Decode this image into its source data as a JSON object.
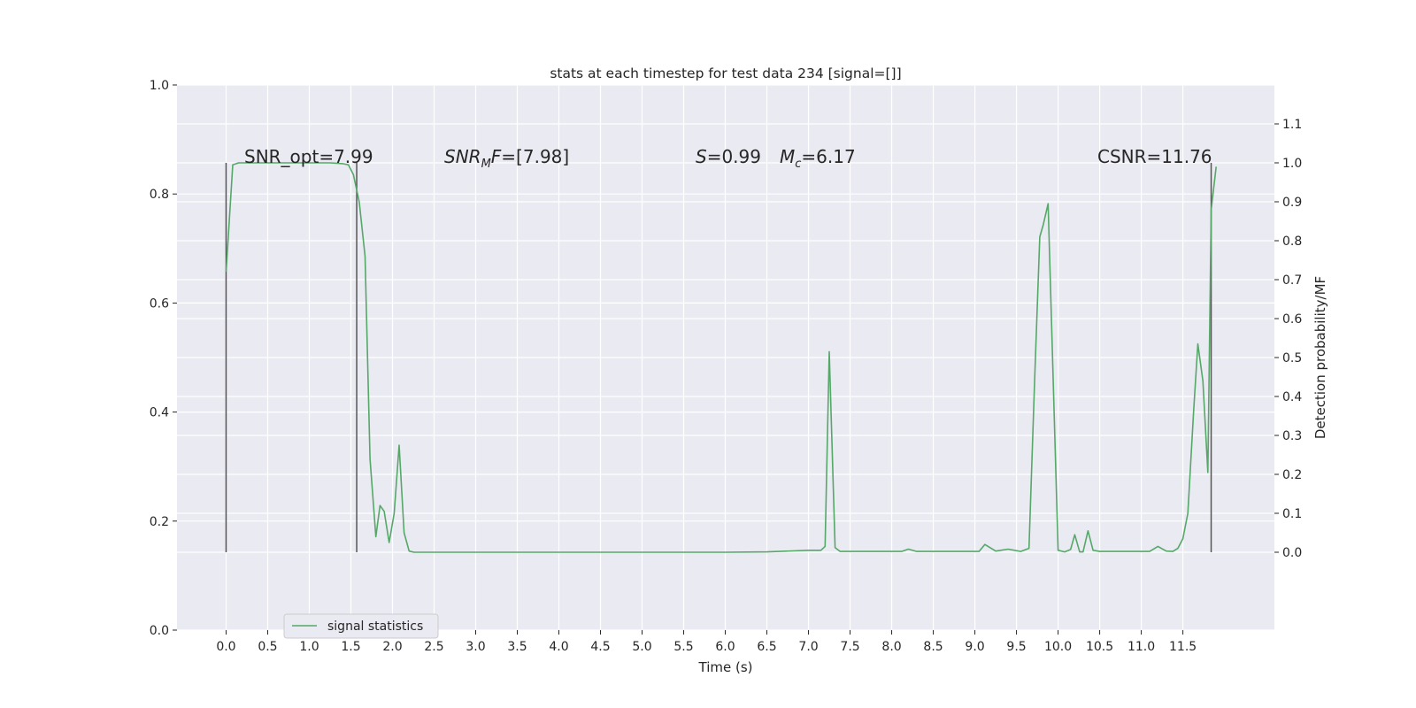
{
  "chart_data": {
    "type": "line",
    "title": "stats at each timestep for test data 234 [signal=[]]",
    "xlabel": "Time (s)",
    "ylabel_left": "",
    "ylabel_right": "Detection probability/MF",
    "xlim": [
      -0.59,
      12.6
    ],
    "ylim_left": [
      0.0,
      1.0
    ],
    "ylim_right": [
      -0.2,
      1.2
    ],
    "x_ticks": [
      "0.0",
      "0.5",
      "1.0",
      "1.5",
      "2.0",
      "2.5",
      "3.0",
      "3.5",
      "4.0",
      "4.5",
      "5.0",
      "5.5",
      "6.0",
      "6.5",
      "7.0",
      "7.5",
      "8.0",
      "8.5",
      "9.0",
      "9.5",
      "10.0",
      "10.5",
      "11.0",
      "11.5"
    ],
    "y_left_ticks": [
      "0.0",
      "0.2",
      "0.4",
      "0.6",
      "0.8",
      "1.0"
    ],
    "y_right_ticks": [
      "0.0",
      "0.1",
      "0.2",
      "0.3",
      "0.4",
      "0.5",
      "0.6",
      "0.7",
      "0.8",
      "0.9",
      "1.0",
      "1.1"
    ],
    "grid": true,
    "legend_position": "lower-left",
    "annotations": [
      {
        "key": "snr_opt",
        "text": "SNR_opt=7.99"
      },
      {
        "key": "snr_mf",
        "text": "=[7.98]"
      },
      {
        "key": "s",
        "text": "=0.99"
      },
      {
        "key": "mc",
        "text": "=6.17"
      },
      {
        "key": "csnr",
        "text": "CSNR=11.76"
      }
    ],
    "vertical_markers_x": [
      0.0,
      1.57,
      11.84
    ],
    "vertical_markers_yrange": [
      0.0,
      1.0
    ],
    "series": [
      {
        "name": "signal statistics",
        "color": "#55a868",
        "x": [
          0.0,
          0.08,
          0.15,
          0.25,
          0.5,
          0.75,
          1.0,
          1.25,
          1.4,
          1.47,
          1.53,
          1.6,
          1.67,
          1.73,
          1.8,
          1.85,
          1.9,
          1.96,
          2.02,
          2.08,
          2.14,
          2.2,
          2.26,
          2.32,
          2.5,
          3.0,
          4.0,
          5.0,
          6.0,
          6.5,
          7.0,
          7.15,
          7.2,
          7.25,
          7.32,
          7.38,
          7.5,
          8.0,
          8.12,
          8.2,
          8.3,
          9.0,
          9.05,
          9.12,
          9.25,
          9.4,
          9.55,
          9.65,
          9.72,
          9.78,
          9.82,
          9.88,
          10.0,
          10.08,
          10.15,
          10.2,
          10.26,
          10.3,
          10.36,
          10.42,
          10.5,
          10.8,
          11.1,
          11.2,
          11.3,
          11.38,
          11.44,
          11.5,
          11.56,
          11.63,
          11.68,
          11.74,
          11.8,
          11.84,
          11.9
        ],
        "values": [
          0.72,
          0.995,
          1.0,
          1.0,
          1.0,
          1.0,
          1.0,
          1.0,
          0.998,
          0.995,
          0.97,
          0.9,
          0.76,
          0.24,
          0.04,
          0.12,
          0.105,
          0.025,
          0.1,
          0.275,
          0.05,
          0.003,
          0.0,
          0.0,
          0.0,
          0.0,
          0.0,
          0.0,
          0.0,
          0.001,
          0.005,
          0.005,
          0.015,
          0.515,
          0.012,
          0.002,
          0.002,
          0.002,
          0.002,
          0.008,
          0.002,
          0.002,
          0.002,
          0.02,
          0.003,
          0.008,
          0.002,
          0.01,
          0.45,
          0.81,
          0.84,
          0.895,
          0.005,
          0.001,
          0.007,
          0.045,
          0.001,
          0.001,
          0.055,
          0.005,
          0.002,
          0.002,
          0.002,
          0.015,
          0.003,
          0.002,
          0.01,
          0.035,
          0.1,
          0.365,
          0.535,
          0.44,
          0.205,
          0.88,
          0.99
        ]
      }
    ]
  }
}
